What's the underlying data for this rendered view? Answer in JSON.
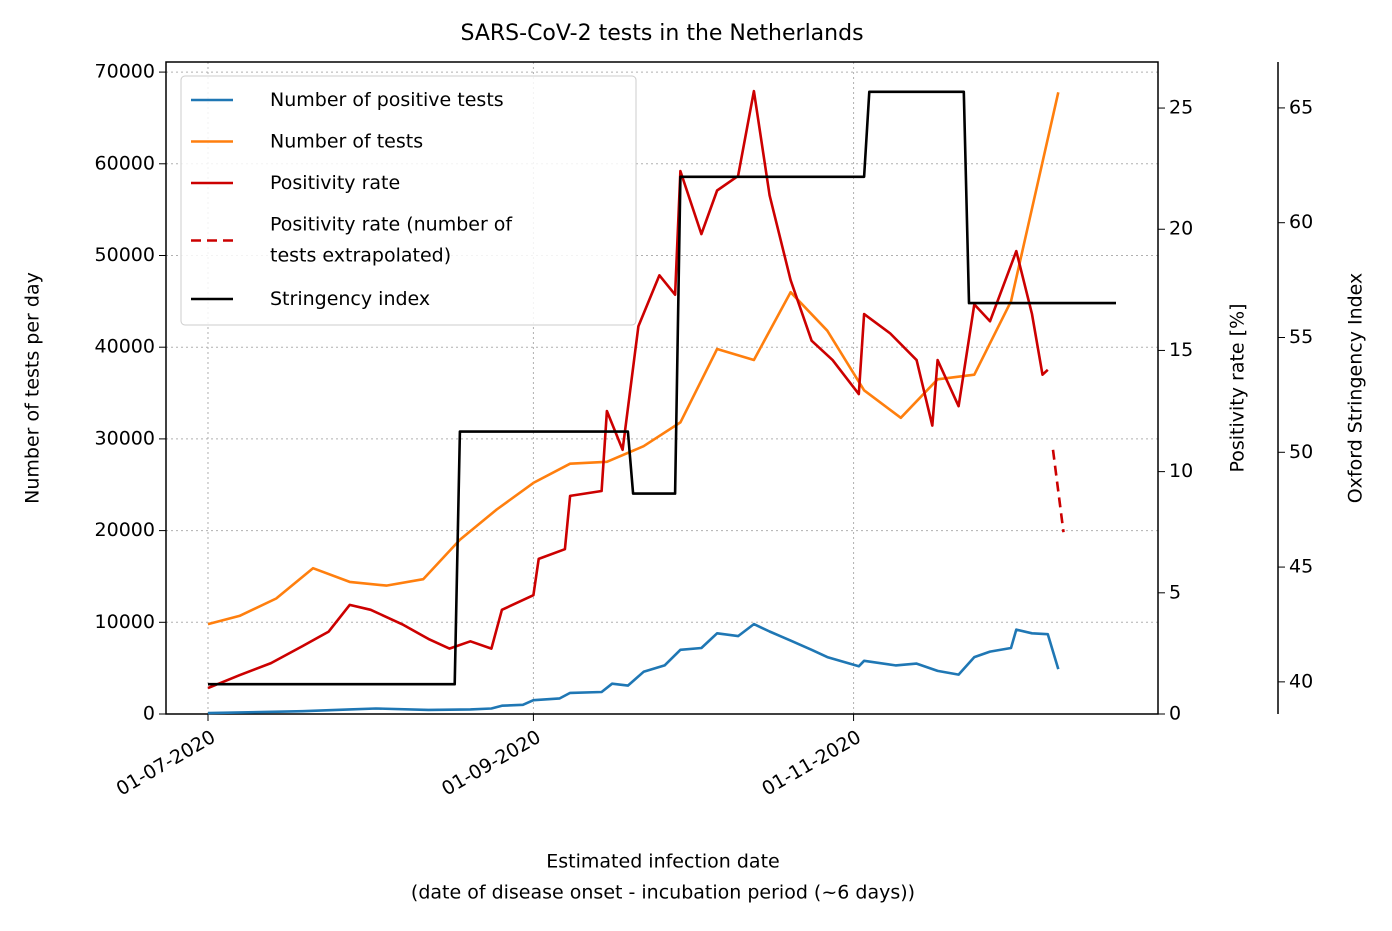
{
  "chart_data": {
    "type": "line",
    "title": "SARS-CoV-2 tests in the Netherlands",
    "xlabel": [
      "Estimated infection date",
      "(date of disease onset - incubation period (~6 days))"
    ],
    "ylabel": "Number of tests per day",
    "y2label": "Positivity rate [%]",
    "y3label": "Oxford Stringency Index",
    "xlim": [
      "2020-06-23",
      "2020-12-29"
    ],
    "xticks": [
      {
        "value": "2020-07-01",
        "label": "01-07-2020"
      },
      {
        "value": "2020-09-01",
        "label": "01-09-2020"
      },
      {
        "value": "2020-11-01",
        "label": "01-11-2020"
      }
    ],
    "ylim": [
      0,
      71100
    ],
    "yticks": [
      0,
      10000,
      20000,
      30000,
      40000,
      50000,
      60000,
      70000
    ],
    "y2lim": [
      0,
      26.9
    ],
    "y2ticks": [
      0,
      5,
      10,
      15,
      20,
      25
    ],
    "y3lim": [
      38.6,
      67.0
    ],
    "y3ticks": [
      40,
      45,
      50,
      55,
      60,
      65
    ],
    "grid": true,
    "legend": "upper left",
    "series": [
      {
        "name": "Number of positive tests",
        "color": "#1f77b4",
        "axis": "y",
        "x": [
          "2020-07-01",
          "2020-07-19",
          "2020-07-28",
          "2020-08-02",
          "2020-08-12",
          "2020-08-20",
          "2020-08-24",
          "2020-08-26",
          "2020-08-30",
          "2020-09-01",
          "2020-09-06",
          "2020-09-08",
          "2020-09-14",
          "2020-09-16",
          "2020-09-19",
          "2020-09-22",
          "2020-09-26",
          "2020-09-29",
          "2020-10-03",
          "2020-10-06",
          "2020-10-10",
          "2020-10-13",
          "2020-10-16",
          "2020-10-20",
          "2020-10-24",
          "2020-10-27",
          "2020-11-02",
          "2020-11-03",
          "2020-11-09",
          "2020-11-13",
          "2020-11-17",
          "2020-11-21",
          "2020-11-24",
          "2020-11-27",
          "2020-12-01",
          "2020-12-02",
          "2020-12-05",
          "2020-12-08",
          "2020-12-10"
        ],
        "values": [
          100,
          300,
          500,
          600,
          450,
          500,
          600,
          900,
          1000,
          1500,
          1700,
          2300,
          2400,
          3300,
          3100,
          4600,
          5300,
          7000,
          7200,
          8800,
          8500,
          9800,
          9000,
          8000,
          7000,
          6200,
          5200,
          5800,
          5300,
          5500,
          4700,
          4300,
          6200,
          6800,
          7200,
          9200,
          8800,
          8700,
          4900
        ]
      },
      {
        "name": "Number of tests",
        "color": "#ff7f0e",
        "axis": "y",
        "x": [
          "2020-07-01",
          "2020-07-07",
          "2020-07-14",
          "2020-07-21",
          "2020-07-28",
          "2020-08-04",
          "2020-08-11",
          "2020-08-18",
          "2020-08-25",
          "2020-09-01",
          "2020-09-08",
          "2020-09-15",
          "2020-09-22",
          "2020-09-29",
          "2020-10-06",
          "2020-10-13",
          "2020-10-20",
          "2020-10-27",
          "2020-11-03",
          "2020-11-10",
          "2020-11-17",
          "2020-11-24",
          "2020-12-01",
          "2020-12-10"
        ],
        "values": [
          9800,
          10700,
          12600,
          15900,
          14400,
          14000,
          14700,
          19000,
          22300,
          25200,
          27300,
          27500,
          29200,
          31800,
          39800,
          38600,
          46000,
          41800,
          35300,
          32300,
          36500,
          37000,
          45000,
          67800
        ]
      },
      {
        "name": "Positivity rate",
        "color": "#cc0000",
        "axis": "y2",
        "x": [
          "2020-07-01",
          "2020-07-07",
          "2020-07-13",
          "2020-07-19",
          "2020-07-24",
          "2020-07-28",
          "2020-08-01",
          "2020-08-07",
          "2020-08-12",
          "2020-08-16",
          "2020-08-20",
          "2020-08-24",
          "2020-08-26",
          "2020-09-01",
          "2020-09-02",
          "2020-09-07",
          "2020-09-08",
          "2020-09-14",
          "2020-09-15",
          "2020-09-18",
          "2020-09-21",
          "2020-09-25",
          "2020-09-28",
          "2020-09-29",
          "2020-10-03",
          "2020-10-06",
          "2020-10-10",
          "2020-10-13",
          "2020-10-16",
          "2020-10-20",
          "2020-10-24",
          "2020-10-28",
          "2020-11-02",
          "2020-11-03",
          "2020-11-08",
          "2020-11-13",
          "2020-11-16",
          "2020-11-17",
          "2020-11-21",
          "2020-11-24",
          "2020-11-27",
          "2020-12-02",
          "2020-12-05",
          "2020-12-07",
          "2020-12-08"
        ],
        "values": [
          1.07,
          1.6,
          2.1,
          2.8,
          3.4,
          4.5,
          4.3,
          3.7,
          3.1,
          2.7,
          3.0,
          2.7,
          4.3,
          4.9,
          6.4,
          6.8,
          9.0,
          9.2,
          12.5,
          10.9,
          16.0,
          18.1,
          17.3,
          22.4,
          19.8,
          21.6,
          22.2,
          25.7,
          21.4,
          17.9,
          15.4,
          14.6,
          13.2,
          16.5,
          15.7,
          14.6,
          11.9,
          14.6,
          12.7,
          16.9,
          16.2,
          19.1,
          16.5,
          14.0,
          14.2
        ]
      },
      {
        "name": "Positivity rate (number of\ntests extrapolated)",
        "color": "#cc0000",
        "axis": "y2",
        "dash": true,
        "x": [
          "2020-12-09",
          "2020-12-11"
        ],
        "values": [
          10.9,
          7.5
        ]
      },
      {
        "name": "Stringency index",
        "color": "#000000",
        "axis": "y3",
        "x": [
          "2020-07-01",
          "2020-08-17",
          "2020-08-18",
          "2020-09-19",
          "2020-09-20",
          "2020-09-28",
          "2020-09-29",
          "2020-11-03",
          "2020-11-04",
          "2020-11-22",
          "2020-11-23",
          "2020-12-21"
        ],
        "values": [
          39.9,
          39.9,
          50.9,
          50.9,
          48.2,
          48.2,
          62.0,
          62.0,
          65.7,
          65.7,
          56.5,
          56.5
        ]
      }
    ]
  }
}
